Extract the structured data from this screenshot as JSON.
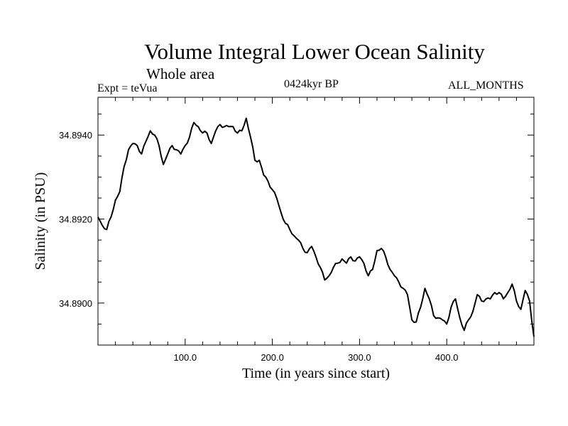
{
  "header": {
    "title": "Volume Integral Lower Ocean Salinity",
    "subtitle": "Whole area",
    "experiment": "Expt = teVua",
    "period": "0424kyr BP",
    "months": "ALL_MONTHS"
  },
  "chart_data": {
    "type": "line",
    "title": "Volume Integral Lower Ocean Salinity",
    "subtitle": "Whole area",
    "xlabel": "Time (in years since start)",
    "ylabel": "Salinity (in PSU)",
    "xlim": [
      0,
      500
    ],
    "ylim": [
      34.889,
      34.8949
    ],
    "x_ticks": [
      100.0,
      200.0,
      300.0,
      400.0
    ],
    "x_tick_labels": [
      "100.0",
      "200.0",
      "300.0",
      "400.0"
    ],
    "y_ticks": [
      34.89,
      34.892,
      34.894
    ],
    "y_tick_labels": [
      "34.8900",
      "34.8920",
      "34.8940"
    ],
    "grid": false,
    "series": [
      {
        "name": "Salinity",
        "x": [
          0,
          5,
          10,
          15,
          20,
          25,
          30,
          35,
          40,
          45,
          50,
          55,
          60,
          65,
          70,
          75,
          80,
          85,
          90,
          95,
          100,
          105,
          110,
          115,
          120,
          125,
          130,
          135,
          140,
          145,
          150,
          155,
          160,
          165,
          170,
          175,
          180,
          185,
          190,
          195,
          200,
          205,
          210,
          215,
          220,
          225,
          230,
          235,
          240,
          245,
          250,
          255,
          260,
          265,
          270,
          275,
          280,
          285,
          290,
          295,
          300,
          305,
          310,
          315,
          320,
          325,
          330,
          335,
          340,
          345,
          350,
          355,
          360,
          365,
          370,
          375,
          380,
          385,
          390,
          395,
          400,
          405,
          410,
          415,
          420,
          425,
          430,
          435,
          440,
          445,
          450,
          455,
          460,
          465,
          470,
          475,
          480,
          485,
          490,
          495,
          500
        ],
        "values": [
          34.89205,
          34.89185,
          34.89175,
          34.89205,
          34.89245,
          34.89265,
          34.89325,
          34.89365,
          34.8938,
          34.89375,
          34.89355,
          34.89385,
          34.8941,
          34.894,
          34.89375,
          34.8933,
          34.89355,
          34.89375,
          34.89365,
          34.89355,
          34.89375,
          34.89395,
          34.8943,
          34.8942,
          34.89405,
          34.89405,
          34.8938,
          34.8941,
          34.89425,
          34.8942,
          34.8942,
          34.8942,
          34.89405,
          34.8941,
          34.8944,
          34.89395,
          34.8934,
          34.8934,
          34.89305,
          34.8929,
          34.8927,
          34.8925,
          34.89215,
          34.8919,
          34.89175,
          34.8916,
          34.8915,
          34.8913,
          34.8912,
          34.89135,
          34.8911,
          34.89085,
          34.89055,
          34.89065,
          34.89085,
          34.89095,
          34.89105,
          34.89095,
          34.8911,
          34.891,
          34.8911,
          34.89095,
          34.89065,
          34.8908,
          34.89125,
          34.8913,
          34.8911,
          34.8908,
          34.89065,
          34.8905,
          34.89035,
          34.8902,
          34.8896,
          34.88955,
          34.8899,
          34.89035,
          34.8901,
          34.8897,
          34.88965,
          34.8896,
          34.8895,
          34.8899,
          34.8901,
          34.88965,
          34.88935,
          34.8896,
          34.8898,
          34.8902,
          34.89005,
          34.8901,
          34.8901,
          34.89025,
          34.89025,
          34.8901,
          34.89025,
          34.89045,
          34.89005,
          34.88985,
          34.8903,
          34.89005,
          34.8892
        ]
      }
    ]
  }
}
